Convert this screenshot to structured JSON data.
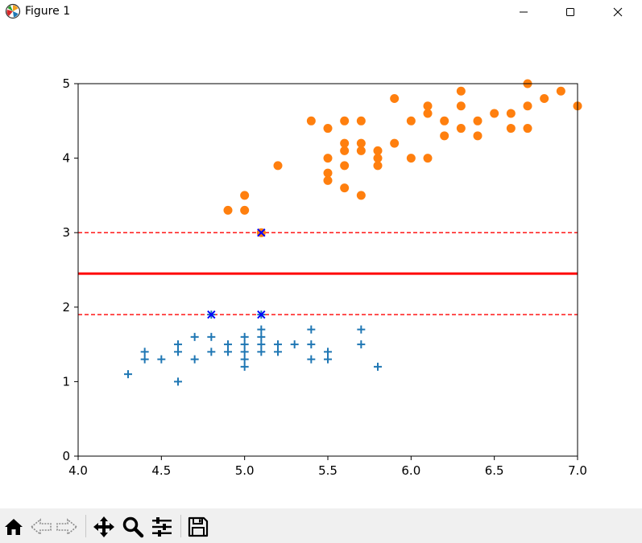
{
  "window": {
    "title": "Figure 1",
    "icons": {
      "app": "matplotlib-icon",
      "minimize": "minimize-icon",
      "maximize": "maximize-icon",
      "close": "close-icon"
    }
  },
  "toolbar": {
    "buttons": [
      "home-icon",
      "back-icon",
      "forward-icon",
      "pan-icon",
      "zoom-icon",
      "configure-icon",
      "save-icon"
    ]
  },
  "chart_data": {
    "type": "scatter",
    "title": "",
    "xlabel": "",
    "ylabel": "",
    "xlim": [
      4.0,
      7.0
    ],
    "ylim": [
      0,
      5
    ],
    "x_ticks": [
      "4.0",
      "4.5",
      "5.0",
      "5.5",
      "6.0",
      "6.5",
      "7.0"
    ],
    "y_ticks": [
      "0",
      "1",
      "2",
      "3",
      "4",
      "5"
    ],
    "grid": false,
    "colors": {
      "setosa": "#1f77b4",
      "versicolor": "#ff7f0e",
      "support": "#0000ff",
      "boundary": "#ff0000"
    },
    "series": [
      {
        "marker": "plus",
        "points": [
          [
            4.3,
            1.1
          ],
          [
            4.4,
            1.3
          ],
          [
            4.4,
            1.4
          ],
          [
            4.5,
            1.3
          ],
          [
            4.6,
            1.0
          ],
          [
            4.6,
            1.4
          ],
          [
            4.6,
            1.5
          ],
          [
            4.7,
            1.3
          ],
          [
            4.7,
            1.6
          ],
          [
            4.8,
            1.4
          ],
          [
            4.8,
            1.6
          ],
          [
            4.8,
            1.9
          ],
          [
            4.9,
            1.4
          ],
          [
            4.9,
            1.5
          ],
          [
            5.0,
            1.2
          ],
          [
            5.0,
            1.3
          ],
          [
            5.0,
            1.4
          ],
          [
            5.0,
            1.5
          ],
          [
            5.0,
            1.6
          ],
          [
            5.1,
            1.4
          ],
          [
            5.1,
            1.5
          ],
          [
            5.1,
            1.7
          ],
          [
            5.1,
            1.9
          ],
          [
            5.1,
            1.6
          ],
          [
            5.2,
            1.4
          ],
          [
            5.2,
            1.5
          ],
          [
            5.3,
            1.5
          ],
          [
            5.4,
            1.3
          ],
          [
            5.4,
            1.5
          ],
          [
            5.4,
            1.7
          ],
          [
            5.5,
            1.3
          ],
          [
            5.5,
            1.4
          ],
          [
            5.7,
            1.5
          ],
          [
            5.7,
            1.7
          ],
          [
            5.8,
            1.2
          ]
        ]
      },
      {
        "marker": "circle",
        "points": [
          [
            4.9,
            3.3
          ],
          [
            5.0,
            3.3
          ],
          [
            5.0,
            3.5
          ],
          [
            5.1,
            3.0
          ],
          [
            5.2,
            3.9
          ],
          [
            5.4,
            4.5
          ],
          [
            5.5,
            3.7
          ],
          [
            5.5,
            3.8
          ],
          [
            5.5,
            4.0
          ],
          [
            5.5,
            4.4
          ],
          [
            5.6,
            3.6
          ],
          [
            5.6,
            3.9
          ],
          [
            5.6,
            4.1
          ],
          [
            5.6,
            4.2
          ],
          [
            5.6,
            4.5
          ],
          [
            5.7,
            3.5
          ],
          [
            5.7,
            4.1
          ],
          [
            5.7,
            4.2
          ],
          [
            5.7,
            4.5
          ],
          [
            5.8,
            3.9
          ],
          [
            5.8,
            4.0
          ],
          [
            5.8,
            4.1
          ],
          [
            5.9,
            4.2
          ],
          [
            5.9,
            4.8
          ],
          [
            6.0,
            4.0
          ],
          [
            6.0,
            4.5
          ],
          [
            6.1,
            4.0
          ],
          [
            6.1,
            4.6
          ],
          [
            6.1,
            4.7
          ],
          [
            6.2,
            4.3
          ],
          [
            6.2,
            4.5
          ],
          [
            6.3,
            4.4
          ],
          [
            6.3,
            4.7
          ],
          [
            6.3,
            4.9
          ],
          [
            6.4,
            4.3
          ],
          [
            6.4,
            4.5
          ],
          [
            6.5,
            4.6
          ],
          [
            6.6,
            4.4
          ],
          [
            6.6,
            4.6
          ],
          [
            6.7,
            4.4
          ],
          [
            6.7,
            4.7
          ],
          [
            6.7,
            5.0
          ],
          [
            6.8,
            4.8
          ],
          [
            6.9,
            4.9
          ],
          [
            7.0,
            4.7
          ]
        ]
      },
      {
        "marker": "x",
        "points": [
          [
            4.8,
            1.9
          ],
          [
            5.1,
            1.9
          ],
          [
            5.1,
            3.0
          ]
        ]
      }
    ],
    "lines": [
      {
        "y": 2.45,
        "style": "solid"
      },
      {
        "y": 3.0,
        "style": "dashed"
      },
      {
        "y": 1.9,
        "style": "dashed"
      }
    ]
  }
}
